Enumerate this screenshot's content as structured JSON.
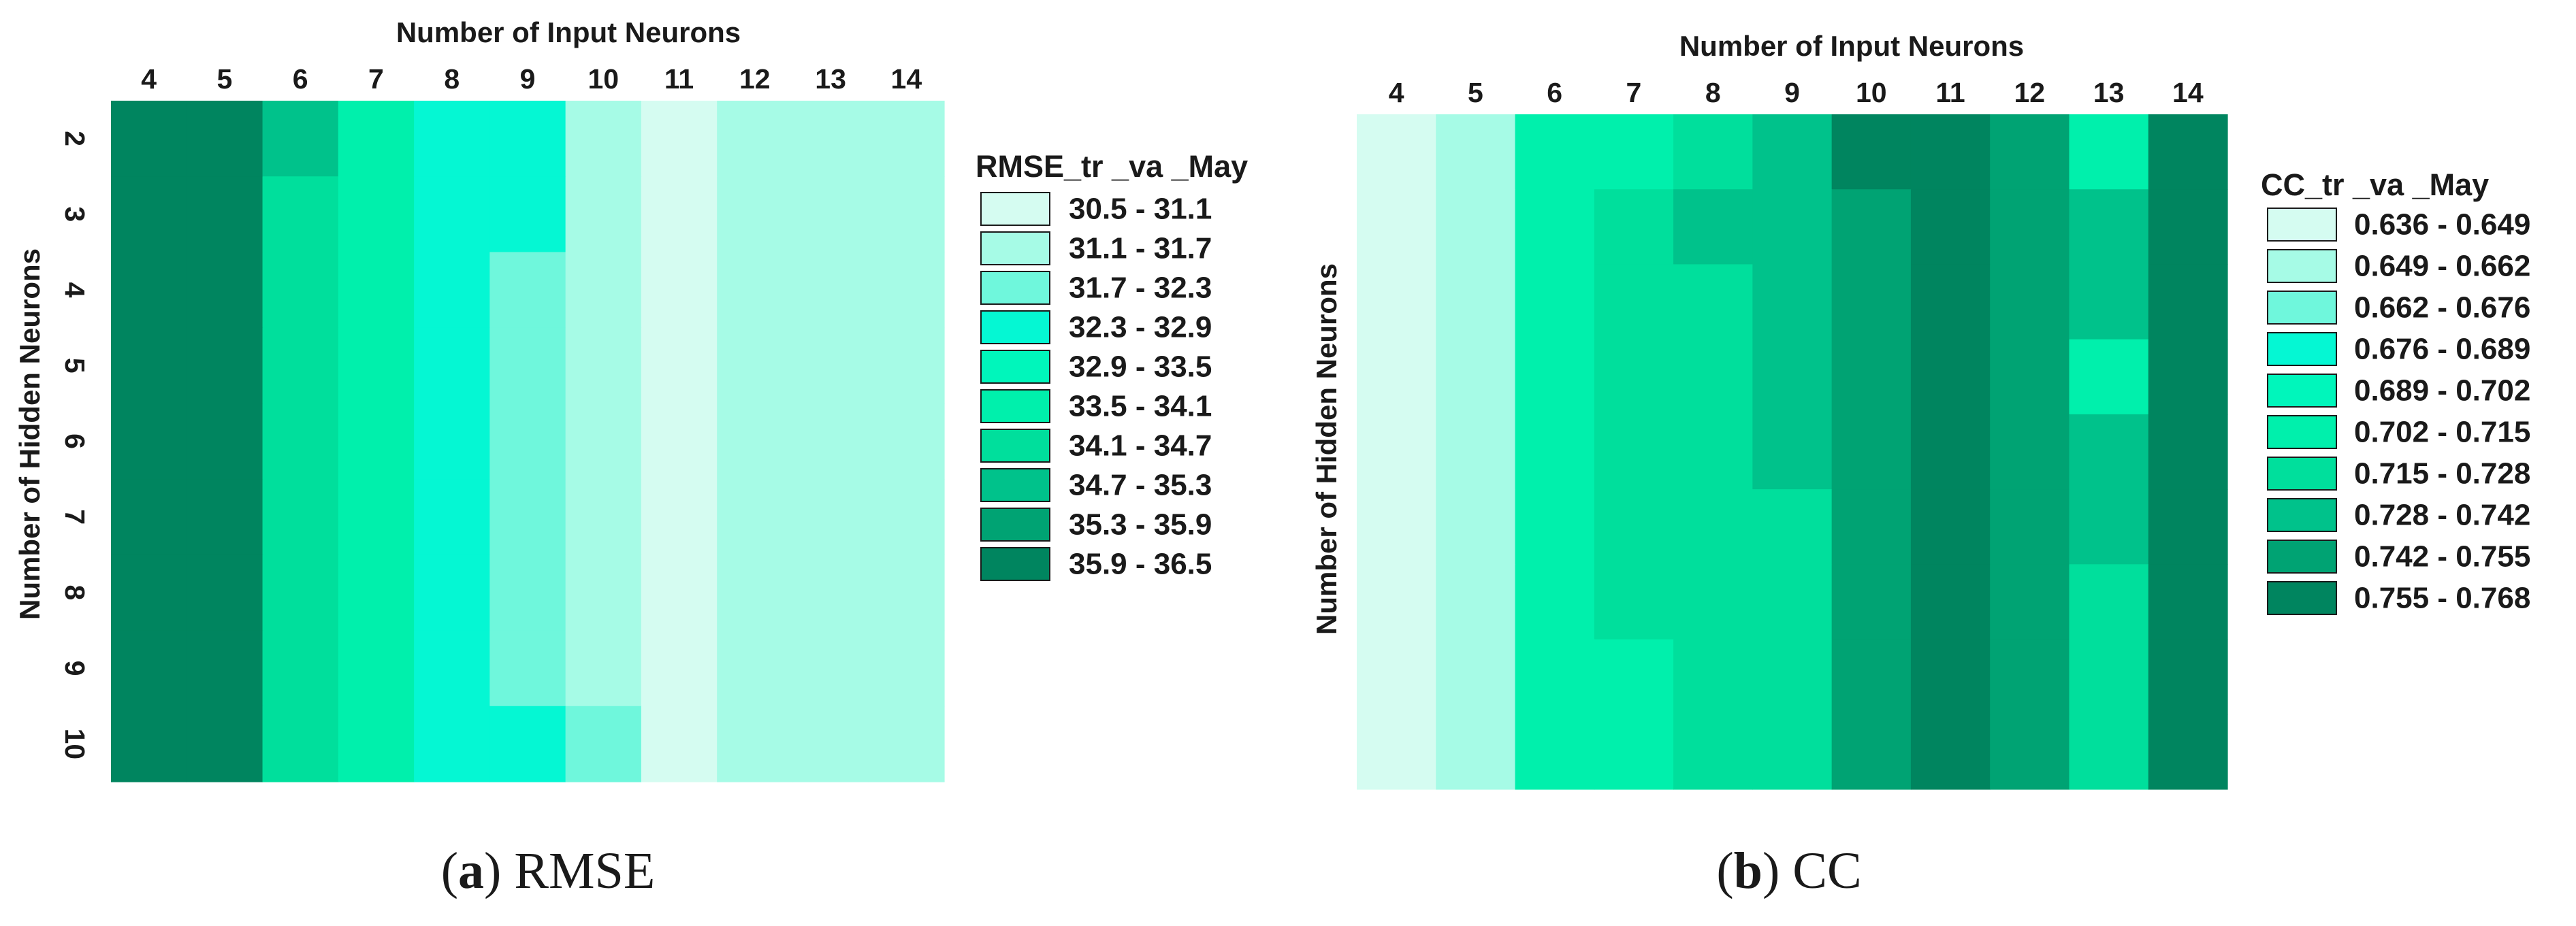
{
  "chart_data": [
    {
      "type": "heatmap",
      "id": "a",
      "caption": {
        "label": "a",
        "name": "RMSE"
      },
      "xlabel": "Number of Input Neurons",
      "ylabel": "Number of Hidden Neurons",
      "x": [
        4,
        5,
        6,
        7,
        8,
        9,
        10,
        11,
        12,
        13,
        14
      ],
      "y": [
        2,
        3,
        4,
        5,
        6,
        7,
        8,
        9,
        10
      ],
      "legend": {
        "title": "RMSE_tr _va _May",
        "reversed_scale": false,
        "classes": [
          {
            "label": "30.5 - 31.1",
            "color": "#d5fcf1"
          },
          {
            "label": "31.1 - 31.7",
            "color": "#a6fbe6"
          },
          {
            "label": "31.7 - 32.3",
            "color": "#6ff7dc"
          },
          {
            "label": "32.3 - 32.9",
            "color": "#05f7d3"
          },
          {
            "label": "32.9 - 33.5",
            "color": "#00f6bb"
          },
          {
            "label": "33.5 - 34.1",
            "color": "#00f0ac"
          },
          {
            "label": "34.1 - 34.7",
            "color": "#00df9c"
          },
          {
            "label": "34.7 - 35.3",
            "color": "#00c28b"
          },
          {
            "label": "35.3 - 35.9",
            "color": "#00a373"
          },
          {
            "label": "35.9 - 36.5",
            "color": "#00855f"
          }
        ]
      },
      "class_matrix": [
        [
          9,
          9,
          7,
          5,
          3,
          3,
          1,
          0,
          1,
          1,
          1
        ],
        [
          9,
          9,
          6,
          5,
          3,
          3,
          1,
          0,
          1,
          1,
          1
        ],
        [
          9,
          9,
          6,
          5,
          3,
          2,
          1,
          0,
          1,
          1,
          1
        ],
        [
          9,
          9,
          6,
          5,
          3,
          2,
          1,
          0,
          1,
          1,
          1
        ],
        [
          9,
          9,
          6,
          5,
          3,
          2,
          1,
          0,
          1,
          1,
          1
        ],
        [
          9,
          9,
          6,
          5,
          3,
          2,
          1,
          0,
          1,
          1,
          1
        ],
        [
          9,
          9,
          6,
          5,
          3,
          2,
          1,
          0,
          1,
          1,
          1
        ],
        [
          9,
          9,
          6,
          5,
          3,
          2,
          1,
          0,
          1,
          1,
          1
        ],
        [
          9,
          9,
          6,
          5,
          3,
          3,
          2,
          0,
          1,
          1,
          1
        ]
      ]
    },
    {
      "type": "heatmap",
      "id": "b",
      "caption": {
        "label": "b",
        "name": "CC"
      },
      "xlabel": "Number of Input Neurons",
      "ylabel": "Number of Hidden Neurons",
      "x": [
        4,
        5,
        6,
        7,
        8,
        9,
        10,
        11,
        12,
        13,
        14
      ],
      "y": [
        2,
        3,
        4,
        5,
        6,
        7,
        8,
        9,
        10
      ],
      "legend": {
        "title": "CC_tr _va _May",
        "reversed_scale": false,
        "classes": [
          {
            "label": "0.636 - 0.649",
            "color": "#d5fcf1"
          },
          {
            "label": "0.649 - 0.662",
            "color": "#a6fbe6"
          },
          {
            "label": "0.662 - 0.676",
            "color": "#6ff7dc"
          },
          {
            "label": "0.676 - 0.689",
            "color": "#05f7d3"
          },
          {
            "label": "0.689 - 0.702",
            "color": "#00f6bb"
          },
          {
            "label": "0.702 - 0.715",
            "color": "#00f0ac"
          },
          {
            "label": "0.715 - 0.728",
            "color": "#00df9c"
          },
          {
            "label": "0.728 - 0.742",
            "color": "#00c28b"
          },
          {
            "label": "0.742 - 0.755",
            "color": "#00a373"
          },
          {
            "label": "0.755 - 0.768",
            "color": "#00855f"
          }
        ]
      },
      "class_matrix": [
        [
          0,
          1,
          5,
          5,
          6,
          7,
          9,
          9,
          8,
          5,
          9
        ],
        [
          0,
          1,
          5,
          6,
          7,
          7,
          8,
          9,
          8,
          7,
          9
        ],
        [
          0,
          1,
          5,
          6,
          6,
          7,
          8,
          9,
          8,
          7,
          9
        ],
        [
          0,
          1,
          5,
          6,
          6,
          7,
          8,
          9,
          8,
          5,
          9
        ],
        [
          0,
          1,
          5,
          6,
          6,
          7,
          8,
          9,
          8,
          7,
          9
        ],
        [
          0,
          1,
          5,
          6,
          6,
          6,
          8,
          9,
          8,
          7,
          9
        ],
        [
          0,
          1,
          5,
          6,
          6,
          6,
          8,
          9,
          8,
          6,
          9
        ],
        [
          0,
          1,
          5,
          5,
          6,
          6,
          8,
          9,
          8,
          6,
          9
        ],
        [
          0,
          1,
          5,
          5,
          6,
          6,
          8,
          9,
          8,
          6,
          9
        ]
      ]
    }
  ]
}
